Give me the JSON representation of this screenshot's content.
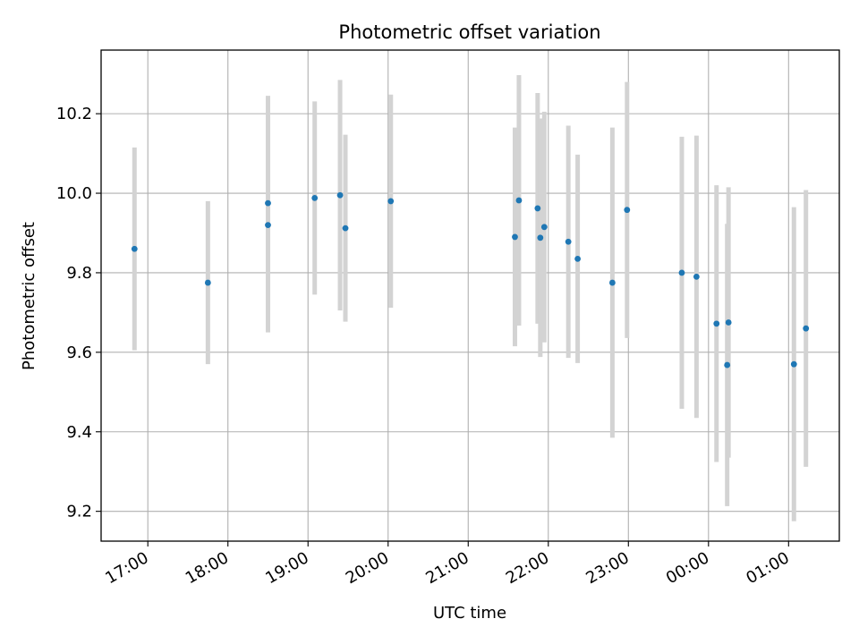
{
  "chart_data": {
    "type": "scatter",
    "title": "Photometric offset variation",
    "xlabel": "UTC time",
    "ylabel": "Photometric offset",
    "x_tick_labels": [
      "17:00",
      "18:00",
      "19:00",
      "20:00",
      "21:00",
      "22:00",
      "23:00",
      "00:00",
      "01:00"
    ],
    "x_ticks": [
      "2024-01-01T17:00",
      "2024-01-01T18:00",
      "2024-01-01T19:00",
      "2024-01-01T20:00",
      "2024-01-01T21:00",
      "2024-01-01T22:00",
      "2024-01-01T23:00",
      "2024-01-02T00:00",
      "2024-01-02T01:00"
    ],
    "y_ticks": [
      9.2,
      9.4,
      9.6,
      9.8,
      10.0,
      10.2
    ],
    "y_tick_labels": [
      "9.2",
      "9.4",
      "9.6",
      "9.8",
      "10.0",
      "10.2"
    ],
    "xlim": [
      "2024-01-01T16:25",
      "2024-01-02T01:38"
    ],
    "ylim": [
      9.125,
      10.36
    ],
    "grid": true,
    "marker_color": "#1f77b4",
    "errorbar_color": "#d3d3d3",
    "points": [
      {
        "x": "2024-01-01T16:50",
        "y": 9.86,
        "err": 0.255
      },
      {
        "x": "2024-01-01T17:45",
        "y": 9.775,
        "err": 0.205
      },
      {
        "x": "2024-01-01T18:30",
        "y": 9.975,
        "err": 0.27
      },
      {
        "x": "2024-01-01T18:30",
        "y": 9.92,
        "err": 0.27
      },
      {
        "x": "2024-01-01T19:05",
        "y": 9.988,
        "err": 0.243
      },
      {
        "x": "2024-01-01T19:24",
        "y": 9.995,
        "err": 0.29
      },
      {
        "x": "2024-01-01T19:28",
        "y": 9.912,
        "err": 0.235
      },
      {
        "x": "2024-01-01T20:02",
        "y": 9.98,
        "err": 0.268
      },
      {
        "x": "2024-01-01T21:35",
        "y": 9.89,
        "err": 0.275
      },
      {
        "x": "2024-01-01T21:38",
        "y": 9.982,
        "err": 0.315
      },
      {
        "x": "2024-01-01T21:52",
        "y": 9.962,
        "err": 0.29
      },
      {
        "x": "2024-01-01T21:54",
        "y": 9.888,
        "err": 0.3
      },
      {
        "x": "2024-01-01T21:57",
        "y": 9.915,
        "err": 0.29
      },
      {
        "x": "2024-01-01T22:15",
        "y": 9.878,
        "err": 0.292
      },
      {
        "x": "2024-01-01T22:22",
        "y": 9.835,
        "err": 0.262
      },
      {
        "x": "2024-01-01T22:48",
        "y": 9.775,
        "err": 0.39
      },
      {
        "x": "2024-01-01T22:59",
        "y": 9.958,
        "err": 0.322
      },
      {
        "x": "2024-01-01T23:40",
        "y": 9.8,
        "err": 0.342
      },
      {
        "x": "2024-01-01T23:51",
        "y": 9.79,
        "err": 0.355
      },
      {
        "x": "2024-01-02T00:06",
        "y": 9.672,
        "err": 0.348
      },
      {
        "x": "2024-01-02T00:15",
        "y": 9.675,
        "err": 0.34
      },
      {
        "x": "2024-01-02T00:14",
        "y": 9.568,
        "err": 0.355
      },
      {
        "x": "2024-01-02T01:04",
        "y": 9.57,
        "err": 0.395
      },
      {
        "x": "2024-01-02T01:13",
        "y": 9.66,
        "err": 0.348
      }
    ]
  }
}
